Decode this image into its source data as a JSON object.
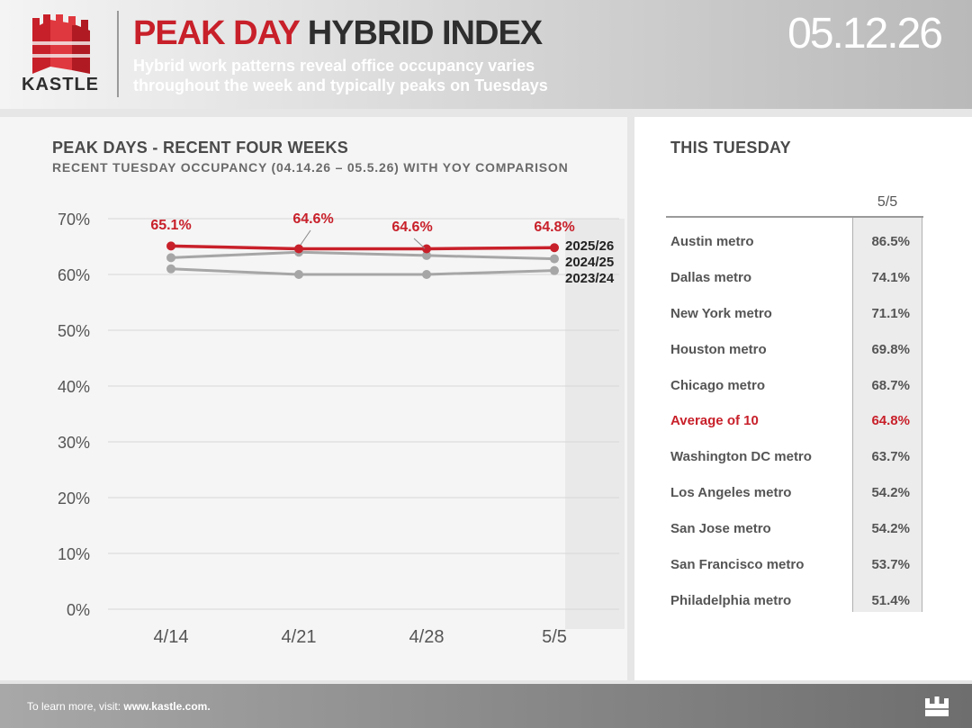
{
  "brand": {
    "name": "KASTLE",
    "red": "#c8202a",
    "dark": "#2e2e2e"
  },
  "header": {
    "title_part1": "PEAK DAY",
    "title_part2": "HYBRID INDEX",
    "subtitle": "Hybrid work patterns reveal office occupancy varies throughout the week and typically peaks on Tuesdays",
    "date": "05.12.26"
  },
  "chart_data": {
    "type": "line",
    "title": "PEAK DAYS - RECENT FOUR WEEKS",
    "subtitle": "RECENT TUESDAY OCCUPANCY (04.14.26 – 05.5.26) WITH YOY COMPARISON",
    "categories": [
      "4/14",
      "4/21",
      "4/28",
      "5/5"
    ],
    "ylim": [
      0,
      70
    ],
    "yticks": [
      "0%",
      "10%",
      "20%",
      "30%",
      "40%",
      "50%",
      "60%",
      "70%"
    ],
    "grid": true,
    "series": [
      {
        "name": "2025/26",
        "values": [
          65.1,
          64.6,
          64.6,
          64.8
        ],
        "color": "#c8202a",
        "labels": [
          "65.1%",
          "64.6%",
          "64.6%",
          "64.8%"
        ]
      },
      {
        "name": "2024/25",
        "values": [
          63.0,
          64.0,
          63.4,
          62.8
        ],
        "color": "#a6a6a6"
      },
      {
        "name": "2023/24",
        "values": [
          61.0,
          60.0,
          60.0,
          60.7
        ],
        "color": "#a6a6a6"
      }
    ]
  },
  "table": {
    "title": "THIS TUESDAY",
    "column": "5/5",
    "rows": [
      {
        "name": "Austin metro",
        "value": "86.5%"
      },
      {
        "name": "Dallas metro",
        "value": "74.1%"
      },
      {
        "name": "New York metro",
        "value": "71.1%"
      },
      {
        "name": "Houston metro",
        "value": "69.8%"
      },
      {
        "name": "Chicago metro",
        "value": "68.7%"
      },
      {
        "name": "Average of 10",
        "value": "64.8%",
        "highlight": true
      },
      {
        "name": "Washington DC metro",
        "value": "63.7%"
      },
      {
        "name": "Los Angeles metro",
        "value": "54.2%"
      },
      {
        "name": "San Jose metro",
        "value": "54.2%"
      },
      {
        "name": "San Francisco metro",
        "value": "53.7%"
      },
      {
        "name": "Philadelphia metro",
        "value": "51.4%"
      }
    ]
  },
  "footer": {
    "text": "To learn more, visit:",
    "link": "www.kastle.com."
  },
  "icons": {
    "logo": "kastle-castle-logo",
    "footer": "castle-icon"
  }
}
